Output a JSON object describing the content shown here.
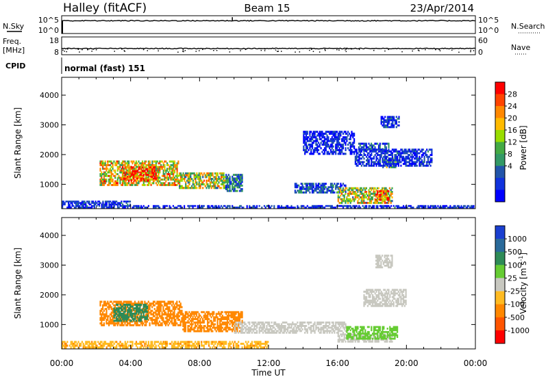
{
  "header": {
    "station": "Halley (fitACF)",
    "beam": "Beam 15",
    "date": "23/Apr/2014"
  },
  "noise_panel": {
    "left_label": "N.Sky",
    "left_ticks": [
      "10^5",
      "10^0"
    ],
    "right_label": "N.Search",
    "right_ticks": [
      "10^5",
      "10^0"
    ]
  },
  "freq_panel": {
    "left_label_1": "Freq.",
    "left_label_2": "[MHz]",
    "left_ticks": [
      "18",
      "8"
    ],
    "right_label": "Nave",
    "right_ticks": [
      "60",
      "0"
    ]
  },
  "cpid": {
    "label": "CPID",
    "value": "normal (fast) 151"
  },
  "power_colorbar": {
    "label": "Power [dB]",
    "ticks": [
      "28",
      "24",
      "20",
      "16",
      "12",
      "8",
      "4"
    ],
    "colors": [
      "#ff0000",
      "#ff4400",
      "#ff8800",
      "#ffbb00",
      "#99dd00",
      "#44aa44",
      "#339966",
      "#2255aa",
      "#1133dd",
      "#0000ff"
    ]
  },
  "velocity_colorbar": {
    "label": "Velocity [m s",
    "label_sup": "-1",
    "label_end": "]",
    "ticks": [
      "1000",
      "500",
      "100",
      "25",
      "-25",
      "-100",
      "-500",
      "-1000"
    ],
    "colors": [
      "#1a3fd0",
      "#2a6a9a",
      "#2e8b57",
      "#66cc33",
      "#c8c8c0",
      "#ffbb22",
      "#ff8800",
      "#ff5500",
      "#ff0000"
    ]
  },
  "chart_data": [
    {
      "type": "heatmap",
      "name": "power",
      "xlabel": "",
      "ylabel": "Slant Range [km]",
      "xlim": [
        0,
        24
      ],
      "ylim": [
        180,
        4600
      ],
      "yticks": [
        1000,
        2000,
        3000,
        4000
      ],
      "ytick_labels": [
        "1000",
        "2000",
        "3000",
        "4000"
      ],
      "x_units": "hours UT",
      "patches": [
        {
          "t0": 2.2,
          "t1": 6.8,
          "r0": 950,
          "r1": 1800,
          "value": 20
        },
        {
          "t0": 3.5,
          "t1": 5.5,
          "r0": 1100,
          "r1": 1600,
          "value": 28
        },
        {
          "t0": 6.8,
          "t1": 9.5,
          "r0": 850,
          "r1": 1400,
          "value": 18
        },
        {
          "t0": 9.5,
          "t1": 10.5,
          "r0": 750,
          "r1": 1350,
          "value": 10
        },
        {
          "t0": 13.5,
          "t1": 16.5,
          "r0": 700,
          "r1": 1050,
          "value": 8
        },
        {
          "t0": 16.0,
          "t1": 19.2,
          "r0": 350,
          "r1": 900,
          "value": 18
        },
        {
          "t0": 18.2,
          "t1": 19.0,
          "r0": 450,
          "r1": 800,
          "value": 28
        },
        {
          "t0": 18.6,
          "t1": 19.4,
          "r0": 1550,
          "r1": 1900,
          "value": 14
        },
        {
          "t0": 17.2,
          "t1": 19.0,
          "r0": 2100,
          "r1": 2400,
          "value": 8
        },
        {
          "t0": 17.0,
          "t1": 21.5,
          "r0": 1600,
          "r1": 2200,
          "value": 6
        },
        {
          "t0": 14.0,
          "t1": 17.0,
          "r0": 2000,
          "r1": 2800,
          "value": 5
        },
        {
          "t0": 18.5,
          "t1": 19.6,
          "r0": 2900,
          "r1": 3300,
          "value": 6
        },
        {
          "t0": 0.0,
          "t1": 24.0,
          "r0": 200,
          "r1": 300,
          "value": 6
        },
        {
          "t0": 0.0,
          "t1": 4.0,
          "r0": 300,
          "r1": 450,
          "value": 6
        }
      ]
    },
    {
      "type": "heatmap",
      "name": "velocity",
      "xlabel": "Time UT",
      "ylabel": "Slant Range [km]",
      "xlim": [
        0,
        24
      ],
      "ylim": [
        180,
        4600
      ],
      "yticks": [
        1000,
        2000,
        3000,
        4000
      ],
      "ytick_labels": [
        "1000",
        "2000",
        "3000",
        "4000"
      ],
      "xticks": [
        0,
        4,
        8,
        12,
        16,
        20,
        24
      ],
      "xtick_labels": [
        "00:00",
        "04:00",
        "08:00",
        "12:00",
        "16:00",
        "20:00",
        "00:00"
      ],
      "x_units": "hours UT",
      "patches": [
        {
          "t0": 2.2,
          "t1": 7.0,
          "r0": 950,
          "r1": 1800,
          "value": -300
        },
        {
          "t0": 3.0,
          "t1": 5.0,
          "r0": 1100,
          "r1": 1700,
          "value": 200
        },
        {
          "t0": 7.0,
          "t1": 10.5,
          "r0": 750,
          "r1": 1450,
          "value": -200
        },
        {
          "t0": 10.0,
          "t1": 16.5,
          "r0": 700,
          "r1": 1100,
          "value": 0
        },
        {
          "t0": 16.0,
          "t1": 19.2,
          "r0": 400,
          "r1": 700,
          "value": 0
        },
        {
          "t0": 16.5,
          "t1": 19.5,
          "r0": 500,
          "r1": 950,
          "value": 60
        },
        {
          "t0": 17.5,
          "t1": 20.0,
          "r0": 1600,
          "r1": 2200,
          "value": 0
        },
        {
          "t0": 18.2,
          "t1": 19.2,
          "r0": 2900,
          "r1": 3350,
          "value": 0
        },
        {
          "t0": 0.0,
          "t1": 12.0,
          "r0": 200,
          "r1": 450,
          "value": -80
        }
      ]
    }
  ],
  "line_panels": [
    {
      "name": "noise",
      "ylim": [
        0,
        5
      ],
      "scale": "log",
      "baseline_value": 3.6,
      "spike_at": 9.9,
      "spike_value": 4.6
    },
    {
      "name": "frequency",
      "ylim": [
        8,
        18
      ],
      "baseline_value": 11.5
    }
  ]
}
